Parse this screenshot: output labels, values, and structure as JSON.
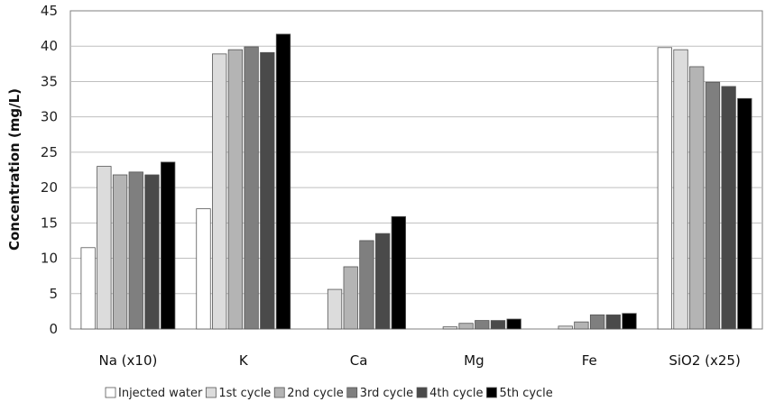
{
  "chart_data": {
    "type": "bar",
    "title": "",
    "xlabel": "",
    "ylabel": "Concentration (mg/L)",
    "ylim": [
      0,
      45
    ],
    "yticks": [
      0,
      5,
      10,
      15,
      20,
      25,
      30,
      35,
      40,
      45
    ],
    "categories": [
      "Na (x10)",
      "K",
      "Ca",
      "Mg",
      "Fe",
      "SiO2 (x25)"
    ],
    "legend_position": "bottom",
    "series": [
      {
        "name": "Injected water",
        "color": "#ffffff",
        "values": [
          11.5,
          17.0,
          0.0,
          0.0,
          0.0,
          39.8
        ]
      },
      {
        "name": "1st cycle",
        "color": "#dcdcdc",
        "values": [
          23.0,
          38.9,
          5.6,
          0.3,
          0.4,
          39.5
        ]
      },
      {
        "name": "2nd cycle",
        "color": "#b4b4b4",
        "values": [
          21.8,
          39.5,
          8.8,
          0.8,
          1.0,
          37.1
        ]
      },
      {
        "name": "3rd cycle",
        "color": "#7f7f7f",
        "values": [
          22.2,
          39.9,
          12.5,
          1.2,
          2.0,
          34.9
        ]
      },
      {
        "name": "4th cycle",
        "color": "#4a4a4a",
        "values": [
          21.8,
          39.1,
          13.5,
          1.2,
          2.0,
          34.3
        ]
      },
      {
        "name": "5th cycle",
        "color": "#000000",
        "values": [
          23.6,
          41.7,
          15.9,
          1.4,
          2.2,
          32.6
        ]
      }
    ]
  }
}
